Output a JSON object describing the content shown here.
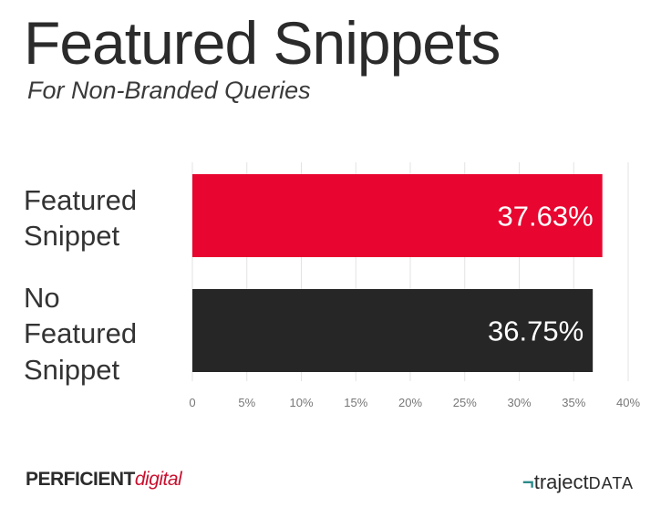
{
  "title": "Featured Snippets",
  "subtitle": "For Non-Branded Queries",
  "chart_data": {
    "type": "bar",
    "orientation": "horizontal",
    "categories": [
      "Featured Snippet",
      "No Featured Snippet"
    ],
    "category_lines": [
      [
        "Featured",
        "Snippet"
      ],
      [
        "No",
        "Featured",
        "Snippet"
      ]
    ],
    "values": [
      37.63,
      36.75
    ],
    "value_labels": [
      "37.63%",
      "36.75%"
    ],
    "bar_colors": [
      "#e8052f",
      "#262626"
    ],
    "xlim": [
      0,
      40
    ],
    "xticks": [
      0,
      5,
      10,
      15,
      20,
      25,
      30,
      35,
      40
    ],
    "xtick_labels": [
      "0",
      "5%",
      "10%",
      "15%",
      "20%",
      "25%",
      "30%",
      "35%",
      "40%"
    ],
    "grid": true
  },
  "logos": {
    "left_main": "PERFICIENT",
    "left_accent": "digital",
    "right_mark": "¬",
    "right_main": "traject",
    "right_accent": "DATA"
  }
}
